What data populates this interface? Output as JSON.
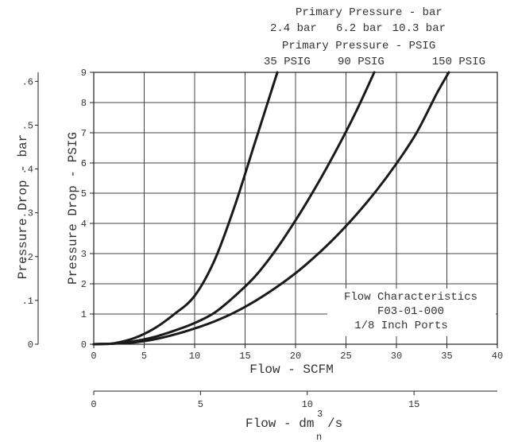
{
  "chart_data": {
    "type": "line",
    "top_titles": {
      "bar_title": "Primary Pressure - bar",
      "bar_values": [
        "2.4 bar",
        "6.2 bar",
        "10.3 bar"
      ],
      "psig_title": "Primary Pressure - PSIG",
      "psig_values": [
        "35 PSIG",
        "90 PSIG",
        "150 PSIG"
      ]
    },
    "xlabel": "Flow - SCFM",
    "ylabel": "Pressure Drop - PSIG",
    "xlim": [
      0,
      40
    ],
    "ylim": [
      0,
      9
    ],
    "x_ticks": [
      0,
      5,
      10,
      15,
      20,
      25,
      30,
      35,
      40
    ],
    "y_ticks": [
      0,
      1,
      2,
      3,
      4,
      5,
      6,
      7,
      8,
      9
    ],
    "grid": true,
    "secondary_y": {
      "label": "Pressure Drop - bar",
      "ticks": [
        "0",
        ".1",
        ".2",
        ".3",
        ".4",
        ".5",
        ".6"
      ],
      "values": [
        0,
        0.1,
        0.2,
        0.3,
        0.4,
        0.5,
        0.6
      ]
    },
    "secondary_x": {
      "label": "Flow - dm³n/s",
      "label_main": "Flow - dm",
      "label_sup": "3",
      "label_sub": "n",
      "label_tail": "/s",
      "ticks": [
        "0",
        "5",
        "10",
        "15"
      ],
      "values": [
        0,
        5,
        10,
        15
      ],
      "max": 18.9
    },
    "annotation": [
      "Flow Characteristics",
      "F03-01-000",
      "1/8 Inch Ports"
    ],
    "series": [
      {
        "name": "35 PSIG",
        "x": [
          0,
          1,
          2,
          4,
          6,
          8,
          10,
          12,
          14,
          16,
          18.2
        ],
        "y": [
          0,
          0.01,
          0.03,
          0.2,
          0.52,
          1.0,
          1.6,
          2.8,
          4.6,
          6.7,
          9
        ]
      },
      {
        "name": "90 PSIG",
        "x": [
          0,
          1,
          2,
          4,
          6,
          8,
          10,
          12,
          14,
          16,
          18,
          20,
          22,
          24,
          26,
          27.8
        ],
        "y": [
          0,
          0.01,
          0.02,
          0.1,
          0.24,
          0.45,
          0.7,
          1.05,
          1.6,
          2.25,
          3.1,
          4.1,
          5.2,
          6.4,
          7.7,
          9
        ]
      },
      {
        "name": "150 PSIG",
        "x": [
          0,
          1,
          2,
          4,
          6,
          8,
          10,
          12,
          14,
          16,
          18,
          20,
          22,
          24,
          26,
          28,
          30,
          32,
          34,
          35.2
        ],
        "y": [
          0,
          0.01,
          0.02,
          0.06,
          0.16,
          0.32,
          0.52,
          0.76,
          1.06,
          1.43,
          1.86,
          2.35,
          2.92,
          3.56,
          4.28,
          5.08,
          5.98,
          7.0,
          8.3,
          9
        ]
      }
    ]
  }
}
